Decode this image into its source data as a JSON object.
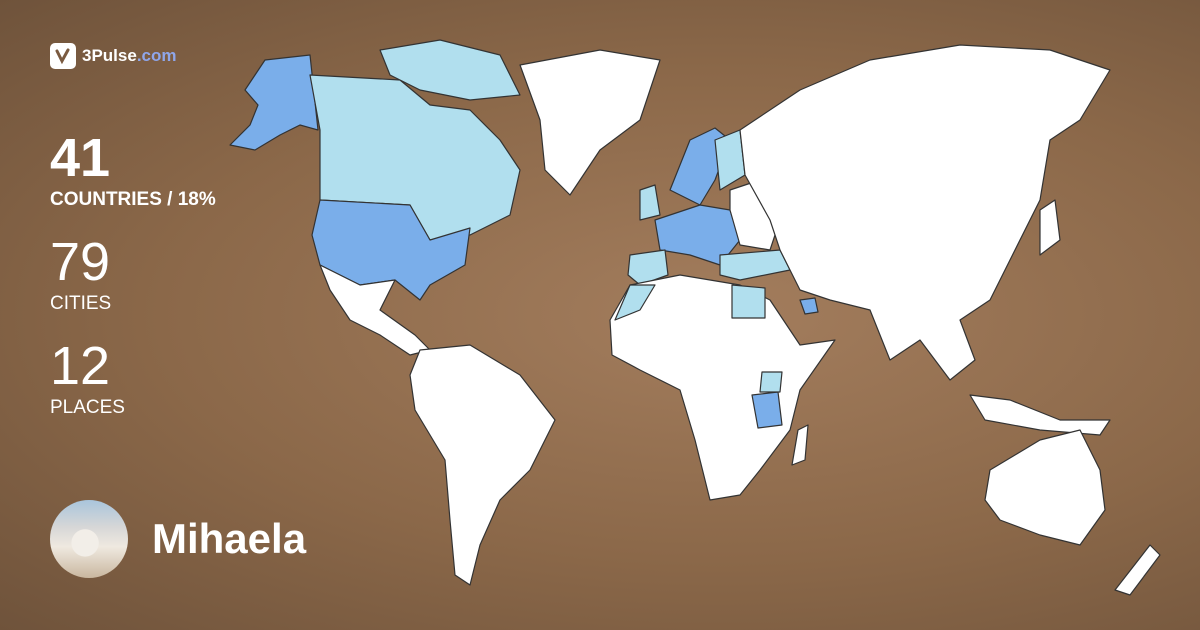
{
  "brand": {
    "name": "3Pulse",
    "domain": ".com",
    "accent": "#8fa6ea"
  },
  "stats": {
    "countries_value": "41",
    "countries_label": "COUNTRIES / 18%",
    "cities_value": "79",
    "cities_label": "CITIES",
    "places_value": "12",
    "places_label": "PLACES"
  },
  "user": {
    "name": "Mihaela",
    "avatar": "user-photo"
  },
  "map": {
    "colors": {
      "visited": "#7aaeea",
      "visited_light": "#b1dfee",
      "unvisited": "#ffffff",
      "border": "#333333",
      "background": "#8f6b4c"
    }
  }
}
